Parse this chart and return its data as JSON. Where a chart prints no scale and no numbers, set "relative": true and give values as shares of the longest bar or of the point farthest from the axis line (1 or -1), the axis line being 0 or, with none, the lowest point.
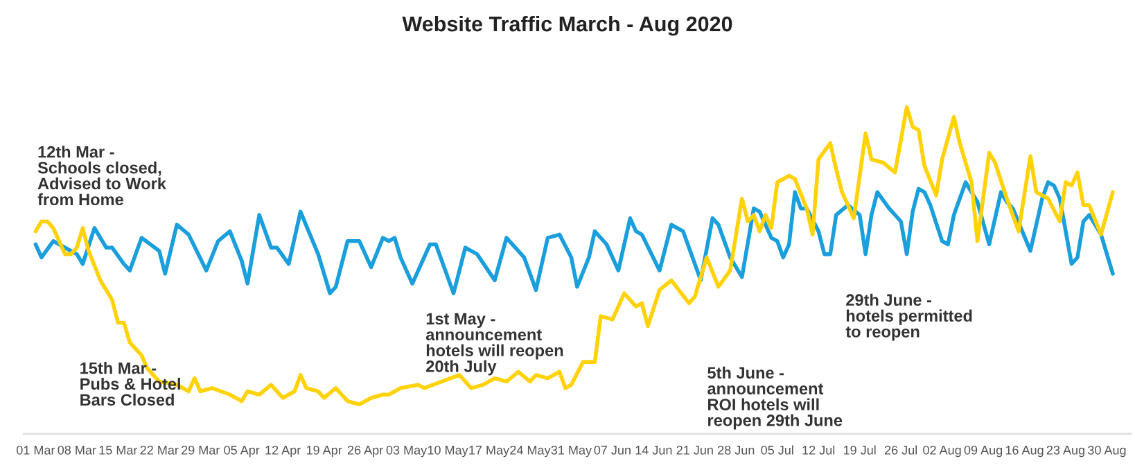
{
  "chart_data": {
    "type": "line",
    "title": "Website Traffic March - Aug 2020",
    "relative": true,
    "tick_labels": "x",
    "grid": false,
    "xlim": [
      "2020-02-28",
      "2020-09-03"
    ],
    "xticks": [
      {
        "value": "2020-03-01",
        "label": "01 Mar"
      },
      {
        "value": "2020-03-08",
        "label": "08 Mar"
      },
      {
        "value": "2020-03-15",
        "label": "15 Mar"
      },
      {
        "value": "2020-03-22",
        "label": "22 Mar"
      },
      {
        "value": "2020-03-29",
        "label": "29 Mar"
      },
      {
        "value": "2020-04-05",
        "label": "05 Apr"
      },
      {
        "value": "2020-04-12",
        "label": "12 Apr"
      },
      {
        "value": "2020-04-19",
        "label": "19 Apr"
      },
      {
        "value": "2020-04-26",
        "label": "26 Apr"
      },
      {
        "value": "2020-05-03",
        "label": "03 May"
      },
      {
        "value": "2020-05-10",
        "label": "10 May"
      },
      {
        "value": "2020-05-17",
        "label": "17 May"
      },
      {
        "value": "2020-05-24",
        "label": "24 May"
      },
      {
        "value": "2020-05-31",
        "label": "31 May"
      },
      {
        "value": "2020-06-07",
        "label": "07 Jun"
      },
      {
        "value": "2020-06-14",
        "label": "14 Jun"
      },
      {
        "value": "2020-06-21",
        "label": "21 Jun"
      },
      {
        "value": "2020-06-28",
        "label": "28 Jun"
      },
      {
        "value": "2020-07-05",
        "label": "05 Jul"
      },
      {
        "value": "2020-07-12",
        "label": "12 Jul"
      },
      {
        "value": "2020-07-19",
        "label": "19 Jul"
      },
      {
        "value": "2020-07-26",
        "label": "26 Jul"
      },
      {
        "value": "2020-08-02",
        "label": "02 Aug"
      },
      {
        "value": "2020-08-09",
        "label": "09 Aug"
      },
      {
        "value": "2020-08-16",
        "label": "16 Aug"
      },
      {
        "value": "2020-08-23",
        "label": "23 Aug"
      },
      {
        "value": "2020-08-30",
        "label": "30 Aug"
      }
    ],
    "annotations": [
      "12th Mar -\nSchools closed,\nAdvised to Work\nfrom Home",
      "15th Mar -\nPubs & Hotel\nBars Closed",
      "1st May -\nannouncement\nhotels will reopen\n20th July",
      "5th June -\nannouncement\nROI hotels will\nreopen 29th June",
      "29th June -\nhotels permitted\nto reopen"
    ],
    "series": [
      {
        "color": "#1b9fdc",
        "x": [
          "2020-03-01",
          "2020-03-02",
          "2020-03-04",
          "2020-03-06",
          "2020-03-08",
          "2020-03-09",
          "2020-03-11",
          "2020-03-13",
          "2020-03-14",
          "2020-03-16",
          "2020-03-17",
          "2020-03-19",
          "2020-03-22",
          "2020-03-23",
          "2020-03-25",
          "2020-03-27",
          "2020-03-30",
          "2020-04-01",
          "2020-04-03",
          "2020-04-05",
          "2020-04-06",
          "2020-04-08",
          "2020-04-10",
          "2020-04-11",
          "2020-04-13",
          "2020-04-15",
          "2020-04-18",
          "2020-04-20",
          "2020-04-21",
          "2020-04-23",
          "2020-04-25",
          "2020-04-27",
          "2020-04-29",
          "2020-04-30",
          "2020-05-01",
          "2020-05-02",
          "2020-05-04",
          "2020-05-07",
          "2020-05-08",
          "2020-05-11",
          "2020-05-13",
          "2020-05-15",
          "2020-05-18",
          "2020-05-20",
          "2020-05-22",
          "2020-05-23",
          "2020-05-25",
          "2020-05-27",
          "2020-05-29",
          "2020-05-31",
          "2020-06-01",
          "2020-06-03",
          "2020-06-04",
          "2020-06-06",
          "2020-06-08",
          "2020-06-10",
          "2020-06-11",
          "2020-06-12",
          "2020-06-15",
          "2020-06-17",
          "2020-06-19",
          "2020-06-20",
          "2020-06-22",
          "2020-06-24",
          "2020-06-25",
          "2020-06-27",
          "2020-06-29",
          "2020-07-01",
          "2020-07-02",
          "2020-07-03",
          "2020-07-04",
          "2020-07-05",
          "2020-07-06",
          "2020-07-07",
          "2020-07-08",
          "2020-07-09",
          "2020-07-10",
          "2020-07-12",
          "2020-07-13",
          "2020-07-14",
          "2020-07-15",
          "2020-07-17",
          "2020-07-19",
          "2020-07-20",
          "2020-07-21",
          "2020-07-22",
          "2020-07-24",
          "2020-07-26",
          "2020-07-27",
          "2020-07-28",
          "2020-07-29",
          "2020-07-30",
          "2020-07-31",
          "2020-08-02",
          "2020-08-03",
          "2020-08-04",
          "2020-08-06",
          "2020-08-08",
          "2020-08-10",
          "2020-08-12",
          "2020-08-13",
          "2020-08-14",
          "2020-08-17",
          "2020-08-19",
          "2020-08-20",
          "2020-08-21",
          "2020-08-22",
          "2020-08-24",
          "2020-08-25",
          "2020-08-26",
          "2020-08-27",
          "2020-08-29",
          "2020-08-31"
        ],
        "values": [
          0.58,
          0.54,
          0.59,
          0.57,
          0.55,
          0.52,
          0.63,
          0.57,
          0.57,
          0.52,
          0.5,
          0.6,
          0.56,
          0.49,
          0.64,
          0.61,
          0.5,
          0.59,
          0.62,
          0.53,
          0.46,
          0.67,
          0.57,
          0.57,
          0.52,
          0.68,
          0.55,
          0.43,
          0.45,
          0.59,
          0.59,
          0.51,
          0.6,
          0.59,
          0.6,
          0.54,
          0.46,
          0.58,
          0.58,
          0.43,
          0.57,
          0.55,
          0.47,
          0.6,
          0.56,
          0.54,
          0.44,
          0.6,
          0.61,
          0.54,
          0.45,
          0.54,
          0.62,
          0.58,
          0.5,
          0.66,
          0.62,
          0.61,
          0.5,
          0.64,
          0.62,
          0.57,
          0.47,
          0.66,
          0.64,
          0.54,
          0.48,
          0.69,
          0.68,
          0.64,
          0.6,
          0.59,
          0.54,
          0.58,
          0.74,
          0.69,
          0.69,
          0.62,
          0.55,
          0.55,
          0.67,
          0.7,
          0.67,
          0.55,
          0.67,
          0.74,
          0.69,
          0.65,
          0.55,
          0.68,
          0.75,
          0.74,
          0.7,
          0.59,
          0.58,
          0.67,
          0.77,
          0.71,
          0.58,
          0.74,
          0.71,
          0.69,
          0.56,
          0.72,
          0.77,
          0.76,
          0.72,
          0.52,
          0.54,
          0.65,
          0.67,
          0.61,
          0.49
        ]
      },
      {
        "color": "#ffd20a",
        "x": [
          "2020-03-01",
          "2020-03-02",
          "2020-03-03",
          "2020-03-04",
          "2020-03-06",
          "2020-03-07",
          "2020-03-08",
          "2020-03-09",
          "2020-03-10",
          "2020-03-12",
          "2020-03-14",
          "2020-03-15",
          "2020-03-16",
          "2020-03-17",
          "2020-03-19",
          "2020-03-20",
          "2020-03-22",
          "2020-03-25",
          "2020-03-27",
          "2020-03-28",
          "2020-03-29",
          "2020-03-31",
          "2020-04-03",
          "2020-04-05",
          "2020-04-06",
          "2020-04-08",
          "2020-04-10",
          "2020-04-12",
          "2020-04-14",
          "2020-04-15",
          "2020-04-16",
          "2020-04-18",
          "2020-04-19",
          "2020-04-21",
          "2020-04-23",
          "2020-04-25",
          "2020-04-27",
          "2020-04-29",
          "2020-04-30",
          "2020-05-02",
          "2020-05-05",
          "2020-05-06",
          "2020-05-09",
          "2020-05-12",
          "2020-05-14",
          "2020-05-16",
          "2020-05-18",
          "2020-05-20",
          "2020-05-22",
          "2020-05-24",
          "2020-05-25",
          "2020-05-27",
          "2020-05-29",
          "2020-05-30",
          "2020-05-31",
          "2020-06-02",
          "2020-06-04",
          "2020-06-05",
          "2020-06-07",
          "2020-06-09",
          "2020-06-11",
          "2020-06-12",
          "2020-06-13",
          "2020-06-15",
          "2020-06-17",
          "2020-06-20",
          "2020-06-21",
          "2020-06-23",
          "2020-06-25",
          "2020-06-27",
          "2020-06-29",
          "2020-06-30",
          "2020-07-01",
          "2020-07-02",
          "2020-07-03",
          "2020-07-04",
          "2020-07-05",
          "2020-07-07",
          "2020-07-08",
          "2020-07-10",
          "2020-07-11",
          "2020-07-12",
          "2020-07-14",
          "2020-07-15",
          "2020-07-16",
          "2020-07-18",
          "2020-07-20",
          "2020-07-21",
          "2020-07-23",
          "2020-07-25",
          "2020-07-27",
          "2020-07-28",
          "2020-07-29",
          "2020-07-30",
          "2020-08-01",
          "2020-08-02",
          "2020-08-04",
          "2020-08-05",
          "2020-08-07",
          "2020-08-08",
          "2020-08-10",
          "2020-08-11",
          "2020-08-13",
          "2020-08-15",
          "2020-08-17",
          "2020-08-18",
          "2020-08-20",
          "2020-08-22",
          "2020-08-23",
          "2020-08-24",
          "2020-08-25",
          "2020-08-26",
          "2020-08-27",
          "2020-08-29",
          "2020-08-31"
        ],
        "values": [
          0.62,
          0.65,
          0.65,
          0.63,
          0.55,
          0.55,
          0.57,
          0.63,
          0.56,
          0.47,
          0.41,
          0.34,
          0.34,
          0.28,
          0.24,
          0.2,
          0.16,
          0.15,
          0.13,
          0.17,
          0.13,
          0.14,
          0.12,
          0.1,
          0.13,
          0.12,
          0.15,
          0.11,
          0.13,
          0.18,
          0.14,
          0.13,
          0.11,
          0.14,
          0.1,
          0.09,
          0.11,
          0.12,
          0.12,
          0.14,
          0.15,
          0.14,
          0.16,
          0.18,
          0.14,
          0.15,
          0.17,
          0.16,
          0.19,
          0.16,
          0.18,
          0.17,
          0.19,
          0.14,
          0.15,
          0.22,
          0.22,
          0.36,
          0.35,
          0.43,
          0.39,
          0.4,
          0.33,
          0.44,
          0.47,
          0.4,
          0.42,
          0.54,
          0.45,
          0.5,
          0.72,
          0.65,
          0.67,
          0.62,
          0.67,
          0.63,
          0.77,
          0.79,
          0.78,
          0.69,
          0.61,
          0.84,
          0.89,
          0.81,
          0.74,
          0.66,
          0.92,
          0.84,
          0.83,
          0.8,
          1.0,
          0.94,
          0.93,
          0.82,
          0.73,
          0.84,
          0.97,
          0.89,
          0.77,
          0.59,
          0.86,
          0.83,
          0.72,
          0.62,
          0.85,
          0.74,
          0.72,
          0.65,
          0.77,
          0.76,
          0.8,
          0.7,
          0.7,
          0.61,
          0.74
        ]
      }
    ]
  }
}
